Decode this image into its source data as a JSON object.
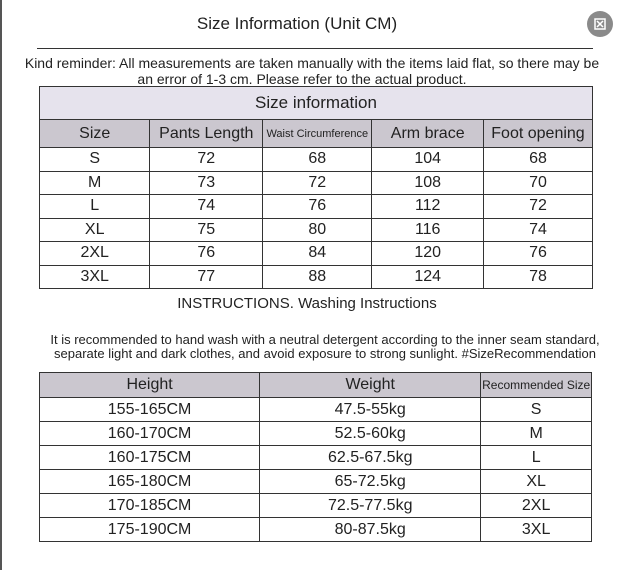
{
  "header": {
    "title": "Size Information (Unit CM)"
  },
  "reminder": [
    "Kind reminder: All measurements are taken manually with the items laid flat, so there may be",
    "an error of 1-3 cm. Please refer to the actual product."
  ],
  "size_table": {
    "caption": "Size information",
    "columns": [
      "Size",
      "Pants Length",
      "Waist Circumference",
      "Arm brace",
      "Foot opening"
    ],
    "rows": [
      [
        "S",
        "72",
        "68",
        "104",
        "68"
      ],
      [
        "M",
        "73",
        "72",
        "108",
        "70"
      ],
      [
        "L",
        "74",
        "76",
        "112",
        "72"
      ],
      [
        "XL",
        "75",
        "80",
        "116",
        "74"
      ],
      [
        "2XL",
        "76",
        "84",
        "120",
        "76"
      ],
      [
        "3XL",
        "77",
        "88",
        "124",
        "78"
      ]
    ]
  },
  "instructions": {
    "title": "INSTRUCTIONS. Washing Instructions",
    "lines": [
      "It is recommended to hand wash with a neutral detergent according to the inner seam standard,",
      "separate light and dark clothes, and avoid exposure to strong sunlight. #SizeRecommendation"
    ]
  },
  "recommendation_table": {
    "columns": [
      "Height",
      "Weight",
      "Recommended Size"
    ],
    "rows": [
      [
        "155-165CM",
        "47.5-55kg",
        "S"
      ],
      [
        "160-170CM",
        "52.5-60kg",
        "M"
      ],
      [
        "160-175CM",
        "62.5-67.5kg",
        "L"
      ],
      [
        "165-180CM",
        "65-72.5kg",
        "XL"
      ],
      [
        "170-185CM",
        "72.5-77.5kg",
        "2XL"
      ],
      [
        "175-190CM",
        "80-87.5kg",
        "3XL"
      ]
    ]
  }
}
